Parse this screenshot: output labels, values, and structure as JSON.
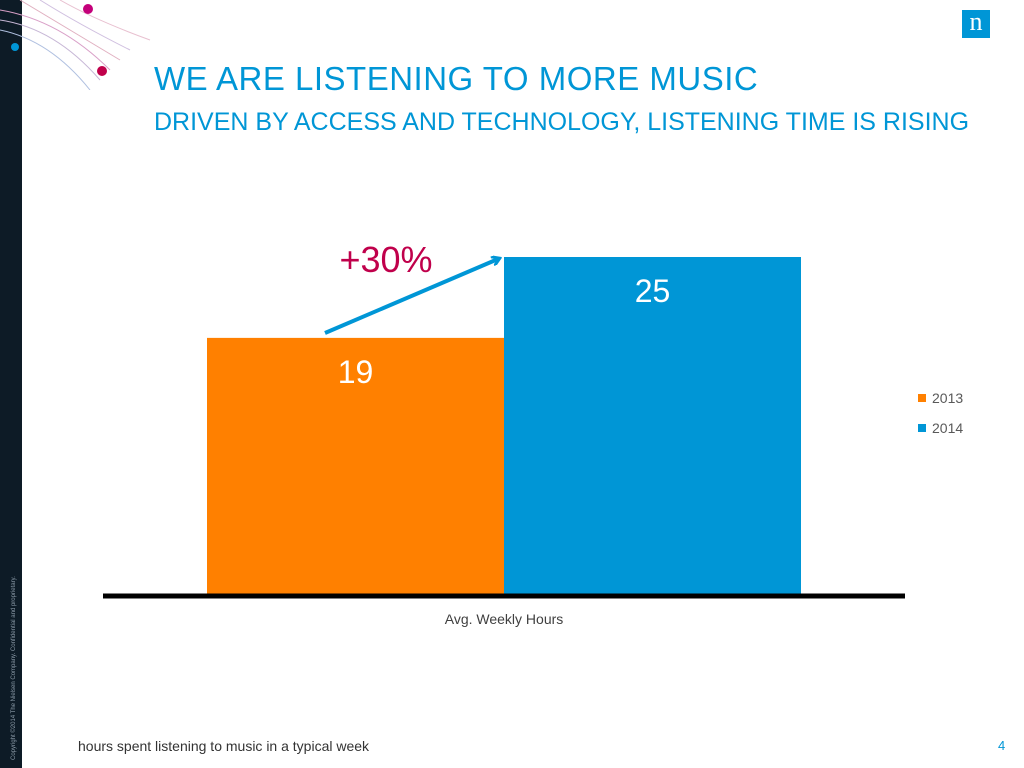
{
  "slide": {
    "title": "WE ARE LISTENING TO MORE MUSIC",
    "subtitle": "DRIVEN BY ACCESS AND TECHNOLOGY, LISTENING TIME IS RISING",
    "logo_letter": "n",
    "copyright": "Copyright ©2014 The Nielsen Company. Confidential and proprietary.",
    "footer_note": "hours spent listening to music in a typical week",
    "page_number": "4",
    "change_annotation": "+30%"
  },
  "colors": {
    "accent": "#0096d6",
    "series_2013": "#ff8000",
    "series_2014": "#0096d6",
    "annotation": "#c0004b",
    "decor_magenta": "#c4007a"
  },
  "icons": {
    "logo": "nielsen-n-logo",
    "trend_arrow": "up-right-arrow"
  },
  "chart_data": {
    "type": "bar",
    "categories": [
      "Avg. Weekly Hours"
    ],
    "series": [
      {
        "name": "2013",
        "values": [
          19
        ],
        "color": "#ff8000"
      },
      {
        "name": "2014",
        "values": [
          25
        ],
        "color": "#0096d6"
      }
    ],
    "data_labels": [
      "19",
      "25"
    ],
    "xlabel": "Avg. Weekly Hours",
    "ylabel": "",
    "ylim": [
      0,
      25
    ],
    "grid": false,
    "legend": "right",
    "annotation": "+30%"
  }
}
